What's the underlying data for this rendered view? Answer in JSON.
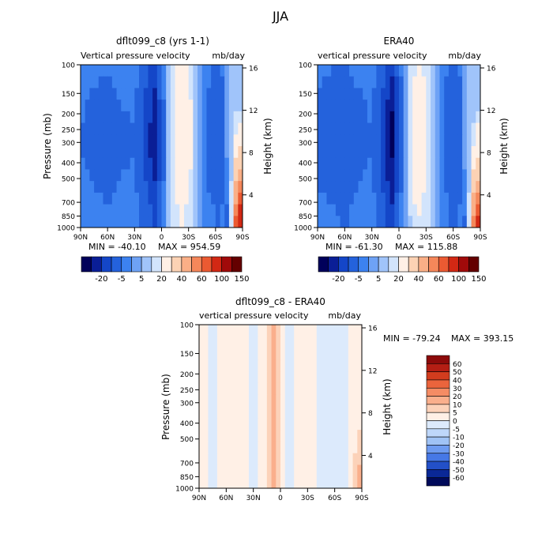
{
  "figure_title": "JJA",
  "chart_data": [
    {
      "id": "model",
      "type": "heatmap",
      "title": "dflt099_c8 (yrs 1-1)",
      "subtitle_left": "Vertical pressure velocity",
      "subtitle_right": "mb/day",
      "xlabel": "",
      "ylabel": "Pressure (mb)",
      "y2label": "Height (km)",
      "x_ticks": [
        "90N",
        "60N",
        "30N",
        "0",
        "30S",
        "60S",
        "90S"
      ],
      "x_range": [
        90,
        -90
      ],
      "y_ticks": [
        100,
        150,
        200,
        250,
        300,
        400,
        500,
        700,
        850,
        1000
      ],
      "y_tick_labels": [
        "100",
        "150",
        "200",
        "250",
        "300",
        "400",
        "500",
        "700",
        "850",
        "1000"
      ],
      "y_range": [
        100,
        1000
      ],
      "y2_ticks": [
        "16",
        "12",
        "8",
        "4"
      ],
      "min_label": "MIN = -40.10",
      "max_label": "MAX = 954.59",
      "legend_levels": [
        "-20",
        "-5",
        "5",
        "20",
        "40",
        "60",
        "100",
        "150"
      ],
      "legend_placement": "below",
      "field": [
        {
          "lat": 90,
          "value": -8
        },
        {
          "lat": 75,
          "value": -10
        },
        {
          "lat": 60,
          "value": -12
        },
        {
          "lat": 45,
          "value": -9
        },
        {
          "lat": 30,
          "value": -8
        },
        {
          "lat": 15,
          "value": -22
        },
        {
          "lat": 8,
          "value": -30
        },
        {
          "lat": 0,
          "value": -14
        },
        {
          "lat": -10,
          "value": 5
        },
        {
          "lat": -20,
          "value": 15
        },
        {
          "lat": -30,
          "value": 12
        },
        {
          "lat": -45,
          "value": -6
        },
        {
          "lat": -60,
          "value": -14
        },
        {
          "lat": -75,
          "value": -10
        },
        {
          "lat": -85,
          "value": 60
        }
      ]
    },
    {
      "id": "obs",
      "type": "heatmap",
      "title": "ERA40",
      "subtitle_left": "vertical pressure velocity",
      "subtitle_right": "mb/day",
      "xlabel": "",
      "ylabel": "",
      "y2label": "Height (km)",
      "x_ticks": [
        "90N",
        "60N",
        "30N",
        "0",
        "30S",
        "60S",
        "90S"
      ],
      "x_range": [
        90,
        -90
      ],
      "y_ticks": [
        100,
        150,
        200,
        250,
        300,
        400,
        500,
        700,
        850,
        1000
      ],
      "y_tick_labels": [
        "100",
        "150",
        "200",
        "250",
        "300",
        "400",
        "500",
        "700",
        "850",
        "1000"
      ],
      "y_range": [
        100,
        1000
      ],
      "y2_ticks": [
        "16",
        "12",
        "8",
        "4"
      ],
      "min_label": "MIN = -61.30",
      "max_label": "MAX = 115.88",
      "legend_levels": [
        "-20",
        "-5",
        "5",
        "20",
        "40",
        "60",
        "100",
        "150"
      ],
      "legend_placement": "below",
      "field": [
        {
          "lat": 90,
          "value": -10
        },
        {
          "lat": 75,
          "value": -12
        },
        {
          "lat": 60,
          "value": -14
        },
        {
          "lat": 45,
          "value": -10
        },
        {
          "lat": 30,
          "value": -8
        },
        {
          "lat": 15,
          "value": -24
        },
        {
          "lat": 8,
          "value": -35
        },
        {
          "lat": 0,
          "value": -16
        },
        {
          "lat": -10,
          "value": 4
        },
        {
          "lat": -20,
          "value": 14
        },
        {
          "lat": -30,
          "value": 10
        },
        {
          "lat": -45,
          "value": -6
        },
        {
          "lat": -60,
          "value": -16
        },
        {
          "lat": -75,
          "value": -8
        },
        {
          "lat": -85,
          "value": 50
        }
      ]
    },
    {
      "id": "diff",
      "type": "heatmap",
      "title": "dflt099_c8 - ERA40",
      "subtitle_left": "vertical pressure velocity",
      "subtitle_right": "mb/day",
      "xlabel": "",
      "ylabel": "Pressure (mb)",
      "y2label": "Height (km)",
      "x_ticks": [
        "90N",
        "60N",
        "30N",
        "0",
        "30S",
        "60S",
        "90S"
      ],
      "x_range": [
        90,
        -90
      ],
      "y_ticks": [
        100,
        150,
        200,
        250,
        300,
        400,
        500,
        700,
        850,
        1000
      ],
      "y_tick_labels": [
        "100",
        "150",
        "200",
        "250",
        "300",
        "400",
        "500",
        "700",
        "850",
        "1000"
      ],
      "y_range": [
        100,
        1000
      ],
      "y2_ticks": [
        "16",
        "12",
        "8",
        "4"
      ],
      "min_label": "MIN = -79.24",
      "max_label": "MAX = 393.15",
      "legend_levels": [
        "60",
        "50",
        "40",
        "30",
        "20",
        "10",
        "5",
        "0",
        "-5",
        "-10",
        "-20",
        "-30",
        "-40",
        "-50",
        "-60"
      ],
      "legend_placement": "right",
      "field": [
        {
          "lat": 90,
          "value": 2
        },
        {
          "lat": 75,
          "value": -1
        },
        {
          "lat": 60,
          "value": 1
        },
        {
          "lat": 45,
          "value": 2
        },
        {
          "lat": 30,
          "value": -1
        },
        {
          "lat": 15,
          "value": 3
        },
        {
          "lat": 8,
          "value": 15
        },
        {
          "lat": 0,
          "value": 4
        },
        {
          "lat": -10,
          "value": -2
        },
        {
          "lat": -20,
          "value": 1
        },
        {
          "lat": -30,
          "value": 2
        },
        {
          "lat": -45,
          "value": -1
        },
        {
          "lat": -60,
          "value": -2
        },
        {
          "lat": -75,
          "value": -3
        },
        {
          "lat": -85,
          "value": 10
        }
      ]
    }
  ],
  "colors": {
    "full_palette": [
      "#00005a",
      "#0a1e96",
      "#1446c8",
      "#2462dc",
      "#3c82f0",
      "#6ea2f5",
      "#a0c4fa",
      "#d2e4fc",
      "#fff0e6",
      "#fcd2b4",
      "#faaf87",
      "#f5875a",
      "#eb5a32",
      "#d22814",
      "#a00a0a",
      "#640000"
    ],
    "diff_palette": [
      "#8c0a0a",
      "#b41e14",
      "#d23c1e",
      "#eb643c",
      "#f58c64",
      "#faaf8c",
      "#fcd2b9",
      "#fff0e6",
      "#dceafc",
      "#bed7fa",
      "#a0c3f5",
      "#6e9bf0",
      "#4678e6",
      "#2350c8",
      "#0a2896",
      "#000a5a"
    ]
  }
}
